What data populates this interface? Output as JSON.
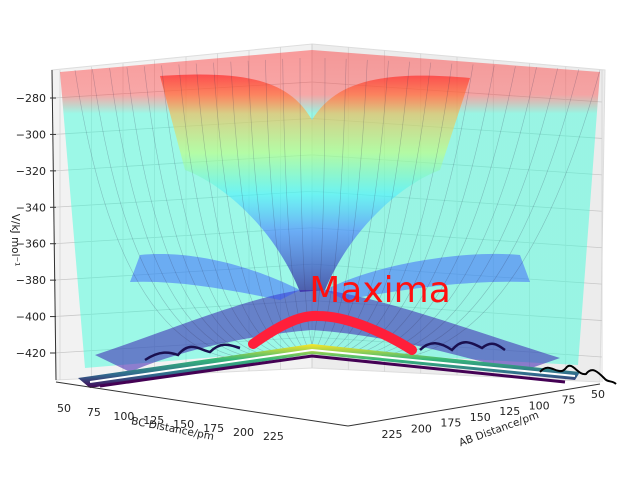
{
  "chart_data": {
    "type": "surface-3d",
    "title": "",
    "zlabel": "V/kJ mol⁻¹",
    "xlabel": "BC Distance/pm",
    "ylabel": "AB Distance/pm",
    "z_ticks": [
      -280,
      -300,
      -320,
      -340,
      -360,
      -380,
      -400,
      -420
    ],
    "x_ticks": [
      50,
      75,
      100,
      125,
      150,
      175,
      200,
      225
    ],
    "y_ticks": [
      225,
      200,
      175,
      150,
      125,
      100,
      75,
      50
    ],
    "zlim": [
      -430,
      -272
    ],
    "annotation": "Maxima",
    "colormap": "jet",
    "surface_alpha": 0.35,
    "grid": true,
    "trajectory_color": "#ff1f3a",
    "contour_colormap": "viridis"
  }
}
